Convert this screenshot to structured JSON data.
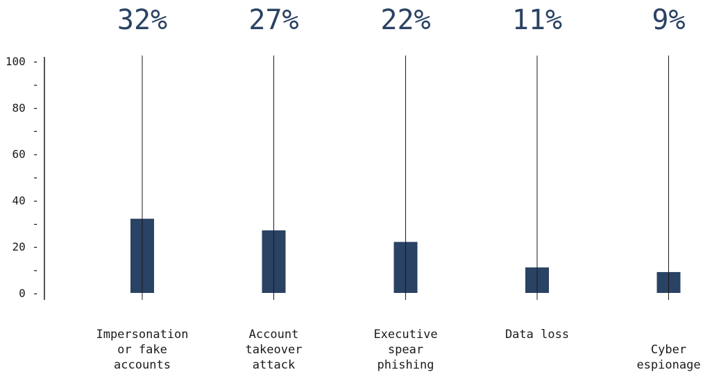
{
  "chart_data": {
    "type": "bar",
    "title": "",
    "xlabel": "",
    "ylabel": "",
    "ylim": [
      0,
      100
    ],
    "yticks_labeled": [
      0,
      20,
      40,
      60,
      80,
      100
    ],
    "yticks_minor_label": "-",
    "grid": false,
    "legend": "none",
    "bar_color": "#2a4263",
    "categories": [
      [
        "Impersonation",
        "or fake",
        "accounts"
      ],
      [
        "Account",
        "takeover",
        "attack"
      ],
      [
        "Executive",
        "spear",
        "phishing"
      ],
      [
        "Data loss"
      ],
      [
        "Cyber",
        "espionage"
      ]
    ],
    "values": [
      32,
      27,
      22,
      11,
      9
    ],
    "value_labels": [
      "32%",
      "27%",
      "22%",
      "11%",
      "9%"
    ]
  }
}
